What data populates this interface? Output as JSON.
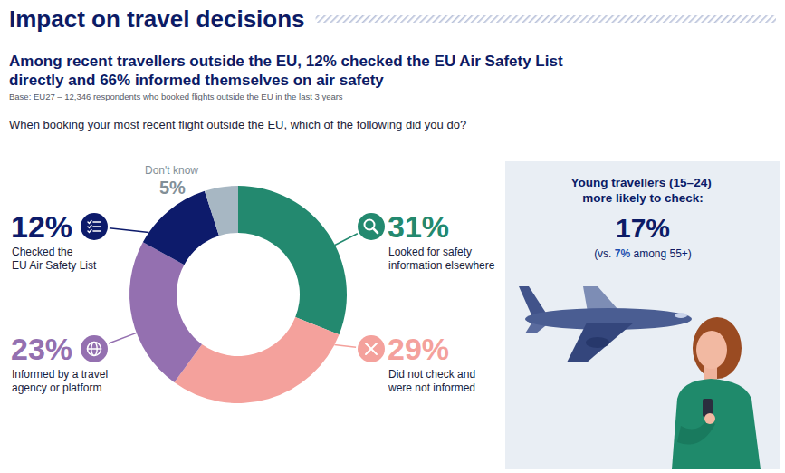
{
  "chart_data": {
    "type": "pie",
    "title": "Impact on travel decisions",
    "subtitle": "Among recent travellers outside the EU, 12% checked the EU Air Safety List directly and 66% informed themselves on air safety",
    "note": "Base: EU27 – 12,346 respondents who booked flights outside the EU in the last 3 years",
    "question": "When booking your most recent flight outside the EU, which of the following did you do?",
    "categories": [
      "Looked for safety information elsewhere",
      "Did not check and were not informed",
      "Informed by a travel agency or platform",
      "Checked the EU Air Safety List",
      "Don't know"
    ],
    "values": [
      31,
      29,
      23,
      12,
      5
    ],
    "value_labels": [
      "31%",
      "29%",
      "23%",
      "12%",
      "5%"
    ],
    "colors": [
      "#23896f",
      "#f4a19c",
      "#9470b0",
      "#0d1b6b",
      "#a7b7c3"
    ],
    "data_labels": true,
    "callout": {
      "heading": "Young travellers (15–24) more likely to check:",
      "value_label": "17%",
      "comparison": [
        "(vs. ",
        "7%",
        " among 55+)"
      ]
    }
  }
}
